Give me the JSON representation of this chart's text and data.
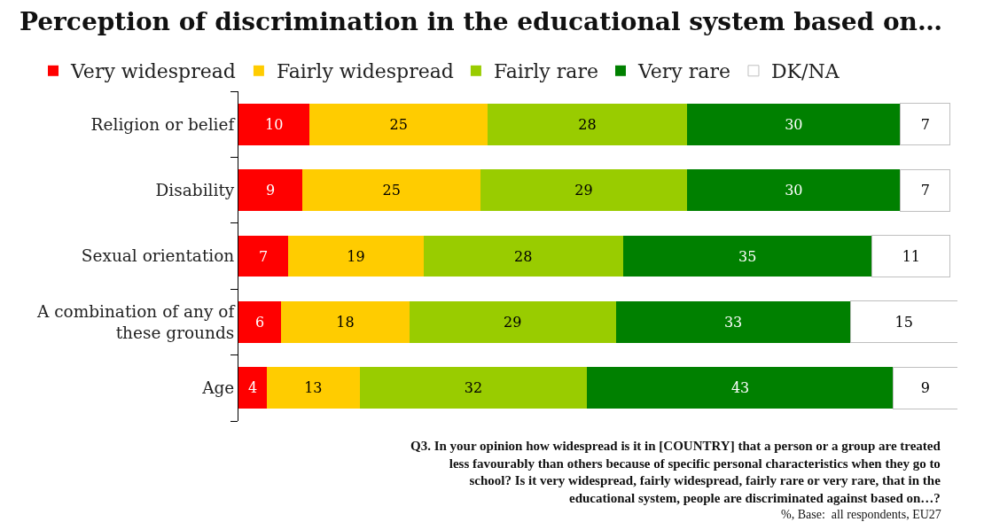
{
  "chart_data": {
    "type": "bar",
    "orientation": "horizontal",
    "stacked": true,
    "title": "Perception of discrimination in the educational system based on…",
    "categories": [
      "Religion or belief",
      "Disability",
      "Sexual orientation",
      "A combination of any of these grounds",
      "Age"
    ],
    "series": [
      {
        "name": "Very widespread",
        "color": "#ff0000",
        "values": [
          10,
          9,
          7,
          6,
          4
        ]
      },
      {
        "name": "Fairly widespread",
        "color": "#ffcc00",
        "values": [
          25,
          25,
          19,
          18,
          13
        ]
      },
      {
        "name": "Fairly rare",
        "color": "#99cc00",
        "values": [
          28,
          29,
          28,
          29,
          32
        ]
      },
      {
        "name": "Very rare",
        "color": "#008000",
        "values": [
          30,
          30,
          35,
          33,
          43
        ]
      },
      {
        "name": "DK/NA",
        "color": "#ffffff",
        "values": [
          7,
          7,
          11,
          15,
          9
        ]
      }
    ],
    "data_labels": true,
    "legend": "top",
    "tick_labels": "y",
    "annotations": [
      "Q3. In your opinion how widespread is it in [COUNTRY] that a person or a group are treated less favourably than others because of specific personal characteristics when they go to school? Is it very widespread, fairly widespread, fairly rare or very rare, that in the educational system, people are discriminated against based on…?",
      "%, Base:  all respondents, EU27"
    ]
  }
}
